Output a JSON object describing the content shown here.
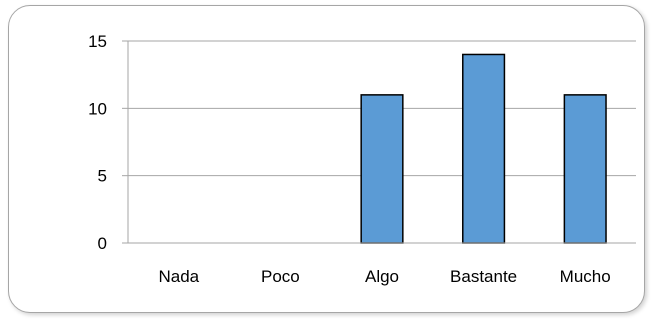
{
  "chart_data": {
    "type": "bar",
    "title": "",
    "xlabel": "",
    "ylabel": "",
    "categories": [
      "Nada",
      "Poco",
      "Algo",
      "Bastante",
      "Mucho"
    ],
    "values": [
      0,
      0,
      11,
      14,
      11
    ],
    "ylim": [
      0,
      15
    ],
    "yticks": [
      0,
      5,
      10,
      15
    ],
    "grid": true,
    "legend": "none",
    "colors": {
      "bar_fill": "#5b9bd5",
      "bar_stroke": "#000000",
      "gridline": "#a6a6a6",
      "axis": "#a6a6a6"
    }
  }
}
